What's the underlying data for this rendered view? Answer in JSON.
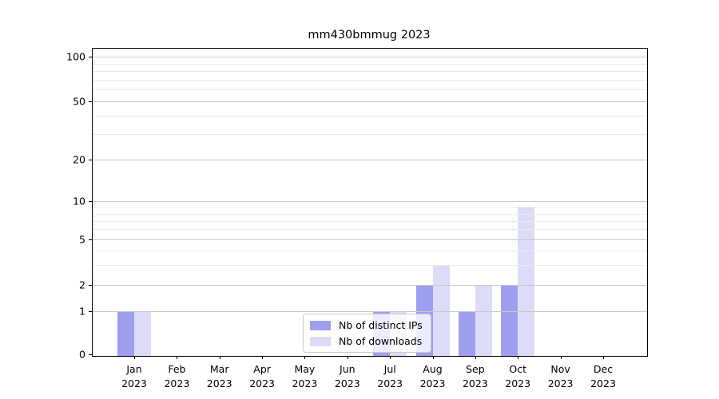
{
  "title": "mm430bmmug 2023",
  "chart_data": {
    "type": "bar",
    "title": "mm430bmmug 2023",
    "categories": [
      "Jan 2023",
      "Feb 2023",
      "Mar 2023",
      "Apr 2023",
      "May 2023",
      "Jun 2023",
      "Jul 2023",
      "Aug 2023",
      "Sep 2023",
      "Oct 2023",
      "Nov 2023",
      "Dec 2023"
    ],
    "series": [
      {
        "name": "Nb of distinct IPs",
        "color": "#9f9ff0",
        "values": [
          1,
          0,
          0,
          0,
          0,
          0,
          1,
          2,
          1,
          2,
          0,
          0
        ]
      },
      {
        "name": "Nb of downloads",
        "color": "#dcdcf9",
        "values": [
          1,
          0,
          0,
          0,
          0,
          0,
          1,
          3,
          2,
          9,
          0,
          0
        ]
      }
    ],
    "xlabel": "",
    "ylabel": "",
    "yscale": "symlog",
    "y_ticks": [
      0,
      1,
      2,
      5,
      10,
      20,
      50,
      100
    ],
    "y_minor_ticks": [
      3,
      4,
      6,
      7,
      8,
      9,
      30,
      40,
      60,
      70,
      80,
      90
    ],
    "ylim": [
      0,
      110
    ],
    "grid": "horizontal, major and minor, drawn above bars",
    "legend_position": "inside lower-center",
    "colors": {
      "grid_major": "#c9c9c9",
      "grid_minor": "#ebebeb",
      "spine": "#000000",
      "background": "#ffffff"
    }
  }
}
